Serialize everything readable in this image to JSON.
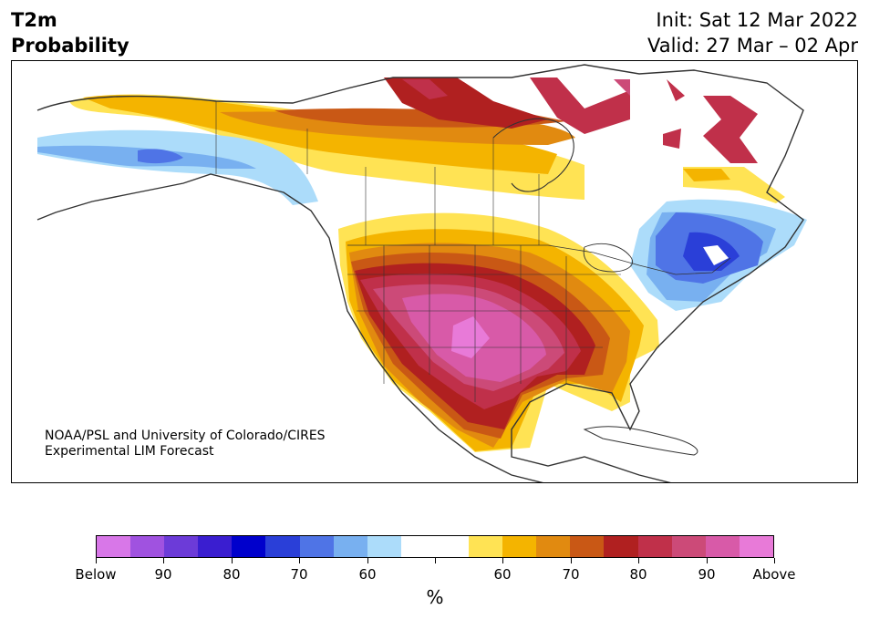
{
  "header": {
    "title_line1": "T2m",
    "title_line2": "Probability",
    "init": "Init: Sat 12 Mar 2022",
    "valid": "Valid: 27 Mar – 02 Apr"
  },
  "credit": {
    "line1": "NOAA/PSL and University of Colorado/CIRES",
    "line2": "Experimental LIM Forecast"
  },
  "colorbar": {
    "colors": [
      "#d877e8",
      "#a052e0",
      "#6c3bd8",
      "#3a1ed0",
      "#0000cc",
      "#2a3fd8",
      "#4f74e6",
      "#78b0f0",
      "#acdcfa",
      "#ffffff",
      "#ffffff",
      "#ffe354",
      "#f4b400",
      "#e18a10",
      "#c95815",
      "#b02020",
      "#c0304a",
      "#cc4a78",
      "#d85aa8",
      "#e87ad8"
    ],
    "tick_labels": [
      "Below",
      "90",
      "80",
      "70",
      "60",
      "",
      "60",
      "70",
      "80",
      "90",
      "Above"
    ],
    "unit": "%"
  },
  "map_colors": {
    "blue_light": "#acdcfa",
    "blue_mid": "#78b0f0",
    "blue": "#4f74e6",
    "blue_dark": "#2a3fd8",
    "yellow": "#ffe354",
    "gold": "#f4b400",
    "orange": "#e18a10",
    "burnt": "#c95815",
    "red": "#b02020",
    "crimson": "#c0304a",
    "rose": "#cc4a78",
    "pink": "#d85aa8",
    "magenta": "#e87ad8",
    "coast": "#333333"
  }
}
